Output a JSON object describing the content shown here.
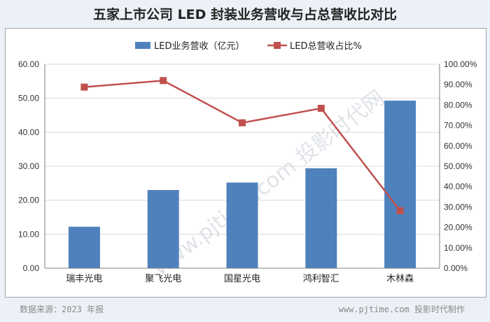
{
  "title": "五家上市公司 LED 封装业务营收与占总营收比对比",
  "footer": {
    "source": "数据来源：2023 年报",
    "site": "www.pjtime.com 投影时代制作"
  },
  "watermark": "www.pjtime.com 投影时代网",
  "colors": {
    "bar": "#4f81bd",
    "line": "#c0504d",
    "grid": "#d9d9d9"
  },
  "chart_data": {
    "type": "bar",
    "categories": [
      "瑞丰光电",
      "聚飞光电",
      "国星光电",
      "鸿利智汇",
      "木林森"
    ],
    "series": [
      {
        "name": "LED业务营收（亿元）",
        "type": "bar",
        "axis": "left",
        "values": [
          12.2,
          23.0,
          25.2,
          29.4,
          49.3
        ]
      },
      {
        "name": "LED总营收占比%",
        "type": "line",
        "axis": "right",
        "values": [
          88.8,
          92.0,
          71.3,
          78.4,
          28.2
        ]
      }
    ],
    "y_left": {
      "min": 0,
      "max": 60,
      "step": 10,
      "ticks": [
        "0.00",
        "10.00",
        "20.00",
        "30.00",
        "40.00",
        "50.00",
        "60.00"
      ]
    },
    "y_right": {
      "min": 0,
      "max": 100,
      "step": 10,
      "ticks": [
        "0.00%",
        "10.00%",
        "20.00%",
        "30.00%",
        "40.00%",
        "50.00%",
        "60.00%",
        "70.00%",
        "80.00%",
        "90.00%",
        "100.00%"
      ]
    },
    "legend": "top-center",
    "grid": true
  }
}
